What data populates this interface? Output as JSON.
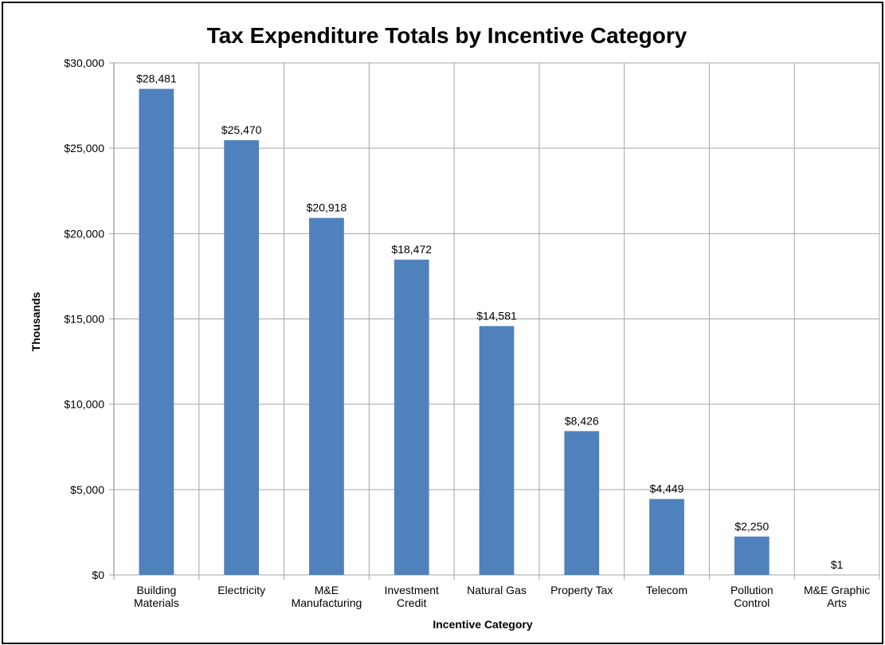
{
  "chart_data": {
    "type": "bar",
    "title": "Tax Expenditure Totals by Incentive Category",
    "xlabel": "Incentive Category",
    "ylabel": "Thousands",
    "categories": [
      [
        "Building",
        "Materials"
      ],
      [
        "Electricity"
      ],
      [
        "M&E",
        "Manufacturing"
      ],
      [
        "Investment",
        "Credit"
      ],
      [
        "Natural Gas"
      ],
      [
        "Property Tax"
      ],
      [
        "Telecom"
      ],
      [
        "Pollution",
        "Control"
      ],
      [
        "M&E Graphic",
        "Arts"
      ]
    ],
    "values": [
      28481,
      25470,
      20918,
      18472,
      14581,
      8426,
      4449,
      2250,
      1
    ],
    "data_labels": [
      "$28,481",
      "$25,470",
      "$20,918",
      "$18,472",
      "$14,581",
      "$8,426",
      "$4,449",
      "$2,250",
      "$1"
    ],
    "ylim": [
      0,
      30000
    ],
    "yticks": [
      0,
      5000,
      10000,
      15000,
      20000,
      25000,
      30000
    ],
    "ytick_labels": [
      "$0",
      "$5,000",
      "$10,000",
      "$15,000",
      "$20,000",
      "$25,000",
      "$30,000"
    ],
    "grid": true,
    "legend": "none",
    "bar_color": "#4f81bd",
    "grid_color": "#a6a6a6"
  }
}
